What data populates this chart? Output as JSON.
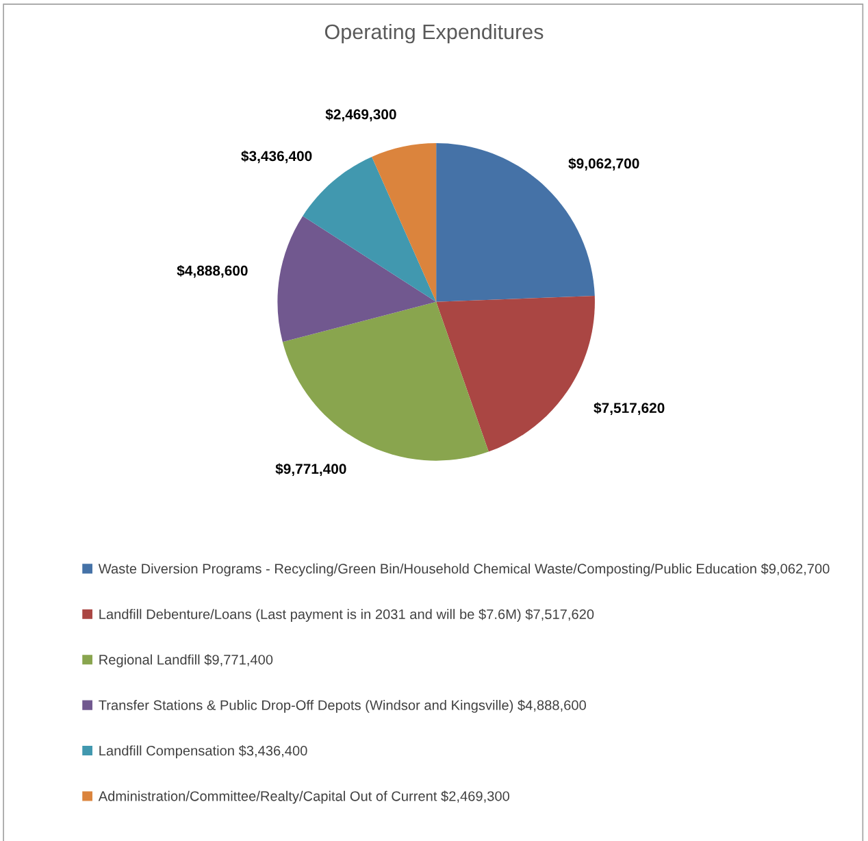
{
  "chart_data": {
    "type": "pie",
    "title": "Operating Expenditures",
    "categories": [
      "Waste Diversion Programs - Recycling/Green Bin/Household Chemical Waste/Composting/Public Education $9,062,700",
      "Landfill Debenture/Loans (Last payment is in 2031 and will be $7.6M) $7,517,620",
      "Regional Landfill $9,771,400",
      "Transfer Stations & Public Drop-Off Depots (Windsor and Kingsville) $4,888,600",
      "Landfill Compensation $3,436,400",
      "Administration/Committee/Realty/Capital Out of Current $2,469,300"
    ],
    "values": [
      9062700,
      7517620,
      9771400,
      4888600,
      3436400,
      2469300
    ],
    "colors": [
      "#4572a7",
      "#aa4643",
      "#89a54e",
      "#71588f",
      "#4198af",
      "#db843d"
    ],
    "value_labels": [
      "$9,062,700",
      "$7,517,620",
      "$9,771,400",
      "$4,888,600",
      "$3,436,400",
      "$2,469,300"
    ],
    "legend": "bottom"
  }
}
